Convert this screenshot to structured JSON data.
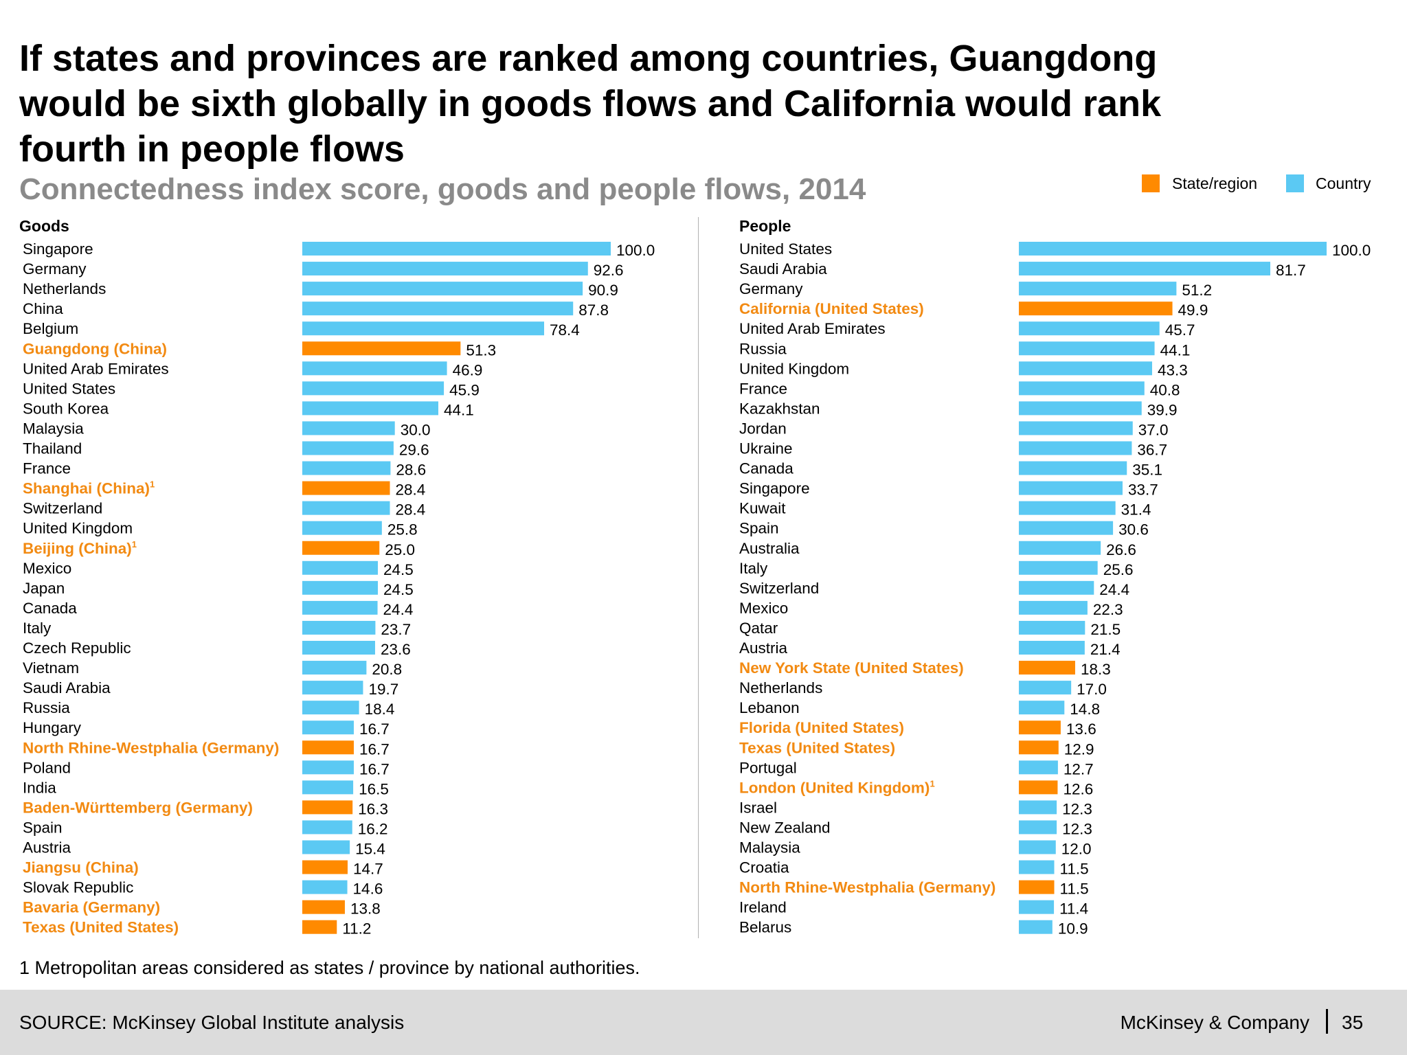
{
  "title": "If states and provinces are ranked among countries, Guangdong would be sixth globally in goods flows and California would rank fourth in people flows",
  "subtitle": "Connectedness index score, goods and people flows, 2014",
  "legend": {
    "state_label": "State/region",
    "country_label": "Country"
  },
  "colors": {
    "state": "#FF8A00",
    "country": "#5BC9F3",
    "state_text": "#F28A12"
  },
  "chart_data": [
    {
      "type": "bar",
      "orientation": "horizontal",
      "title": "Goods",
      "xlim": [
        0,
        100
      ],
      "categories": [
        "Singapore",
        "Germany",
        "Netherlands",
        "China",
        "Belgium",
        "Guangdong (China)",
        "United Arab Emirates",
        "United States",
        "South Korea",
        "Malaysia",
        "Thailand",
        "France",
        "Shanghai (China)",
        "Switzerland",
        "United Kingdom",
        "Beijing (China)",
        "Mexico",
        "Japan",
        "Canada",
        "Italy",
        "Czech Republic",
        "Vietnam",
        "Saudi Arabia",
        "Russia",
        "Hungary",
        "North Rhine-Westphalia (Germany)",
        "Poland",
        "India",
        "Baden-Württemberg (Germany)",
        "Spain",
        "Austria",
        "Jiangsu (China)",
        "Slovak Republic",
        "Bavaria (Germany)",
        "Texas (United States)"
      ],
      "values": [
        100.0,
        92.6,
        90.9,
        87.8,
        78.4,
        51.3,
        46.9,
        45.9,
        44.1,
        30.0,
        29.6,
        28.6,
        28.4,
        28.4,
        25.8,
        25.0,
        24.5,
        24.5,
        24.4,
        23.7,
        23.6,
        20.8,
        19.7,
        18.4,
        16.7,
        16.7,
        16.7,
        16.5,
        16.3,
        16.2,
        15.4,
        14.7,
        14.6,
        13.8,
        11.2
      ],
      "value_labels": [
        "100.0",
        "92.6",
        "90.9",
        "87.8",
        "78.4",
        "51.3",
        "46.9",
        "45.9",
        "44.1",
        "30.0",
        "29.6",
        "28.6",
        "28.4",
        "28.4",
        "25.8",
        "25.0",
        "24.5",
        "24.5",
        "24.4",
        "23.7",
        "23.6",
        "20.8",
        "19.7",
        "18.4",
        "16.7",
        "16.7",
        "16.7",
        "16.5",
        "16.3",
        "16.2",
        "15.4",
        "14.7",
        "14.6",
        "13.8",
        "11.2"
      ],
      "kind": [
        "country",
        "country",
        "country",
        "country",
        "country",
        "state",
        "country",
        "country",
        "country",
        "country",
        "country",
        "country",
        "state",
        "country",
        "country",
        "state",
        "country",
        "country",
        "country",
        "country",
        "country",
        "country",
        "country",
        "country",
        "country",
        "state",
        "country",
        "country",
        "state",
        "country",
        "country",
        "state",
        "country",
        "state",
        "state"
      ],
      "footnote_mark": [
        "",
        "",
        "",
        "",
        "",
        "",
        "",
        "",
        "",
        "",
        "",
        "",
        "1",
        "",
        "",
        "1",
        "",
        "",
        "",
        "",
        "",
        "",
        "",
        "",
        "",
        "",
        "",
        "",
        "",
        "",
        "",
        "",
        "",
        "",
        ""
      ]
    },
    {
      "type": "bar",
      "orientation": "horizontal",
      "title": "People",
      "xlim": [
        0,
        100
      ],
      "categories": [
        "United States",
        "Saudi Arabia",
        "Germany",
        "California (United States)",
        "United Arab Emirates",
        "Russia",
        "United Kingdom",
        "France",
        "Kazakhstan",
        "Jordan",
        "Ukraine",
        "Canada",
        "Singapore",
        "Kuwait",
        "Spain",
        "Australia",
        "Italy",
        "Switzerland",
        "Mexico",
        "Qatar",
        "Austria",
        "New York State (United States)",
        "Netherlands",
        "Lebanon",
        "Florida (United States)",
        "Texas (United States)",
        "Portugal",
        "London (United Kingdom)",
        "Israel",
        "New Zealand",
        "Malaysia",
        "Croatia",
        "North Rhine-Westphalia (Germany)",
        "Ireland",
        "Belarus"
      ],
      "values": [
        100.0,
        81.7,
        51.2,
        49.9,
        45.7,
        44.1,
        43.3,
        40.8,
        39.9,
        37.0,
        36.7,
        35.1,
        33.7,
        31.4,
        30.6,
        26.6,
        25.6,
        24.4,
        22.3,
        21.5,
        21.4,
        18.3,
        17.0,
        14.8,
        13.6,
        12.9,
        12.7,
        12.6,
        12.3,
        12.3,
        12.0,
        11.5,
        11.5,
        11.4,
        10.9
      ],
      "value_labels": [
        "100.0",
        "81.7",
        "51.2",
        "49.9",
        "45.7",
        "44.1",
        "43.3",
        "40.8",
        "39.9",
        "37.0",
        "36.7",
        "35.1",
        "33.7",
        "31.4",
        "30.6",
        "26.6",
        "25.6",
        "24.4",
        "22.3",
        "21.5",
        "21.4",
        "18.3",
        "17.0",
        "14.8",
        "13.6",
        "12.9",
        "12.7",
        "12.6",
        "12.3",
        "12.3",
        "12.0",
        "11.5",
        "11.5",
        "11.4",
        "10.9"
      ],
      "kind": [
        "country",
        "country",
        "country",
        "state",
        "country",
        "country",
        "country",
        "country",
        "country",
        "country",
        "country",
        "country",
        "country",
        "country",
        "country",
        "country",
        "country",
        "country",
        "country",
        "country",
        "country",
        "state",
        "country",
        "country",
        "state",
        "state",
        "country",
        "state",
        "country",
        "country",
        "country",
        "country",
        "state",
        "country",
        "country"
      ],
      "footnote_mark": [
        "",
        "",
        "",
        "",
        "",
        "",
        "",
        "",
        "",
        "",
        "",
        "",
        "",
        "",
        "",
        "",
        "",
        "",
        "",
        "",
        "",
        "",
        "",
        "",
        "",
        "",
        "",
        "1",
        "",
        "",
        "",
        "",
        "",
        "",
        ""
      ]
    }
  ],
  "footnote": "1 Metropolitan areas considered as states / province by national authorities.",
  "footer": {
    "source": "SOURCE: McKinsey Global Institute analysis",
    "company": "McKinsey & Company",
    "page_number": "35"
  }
}
